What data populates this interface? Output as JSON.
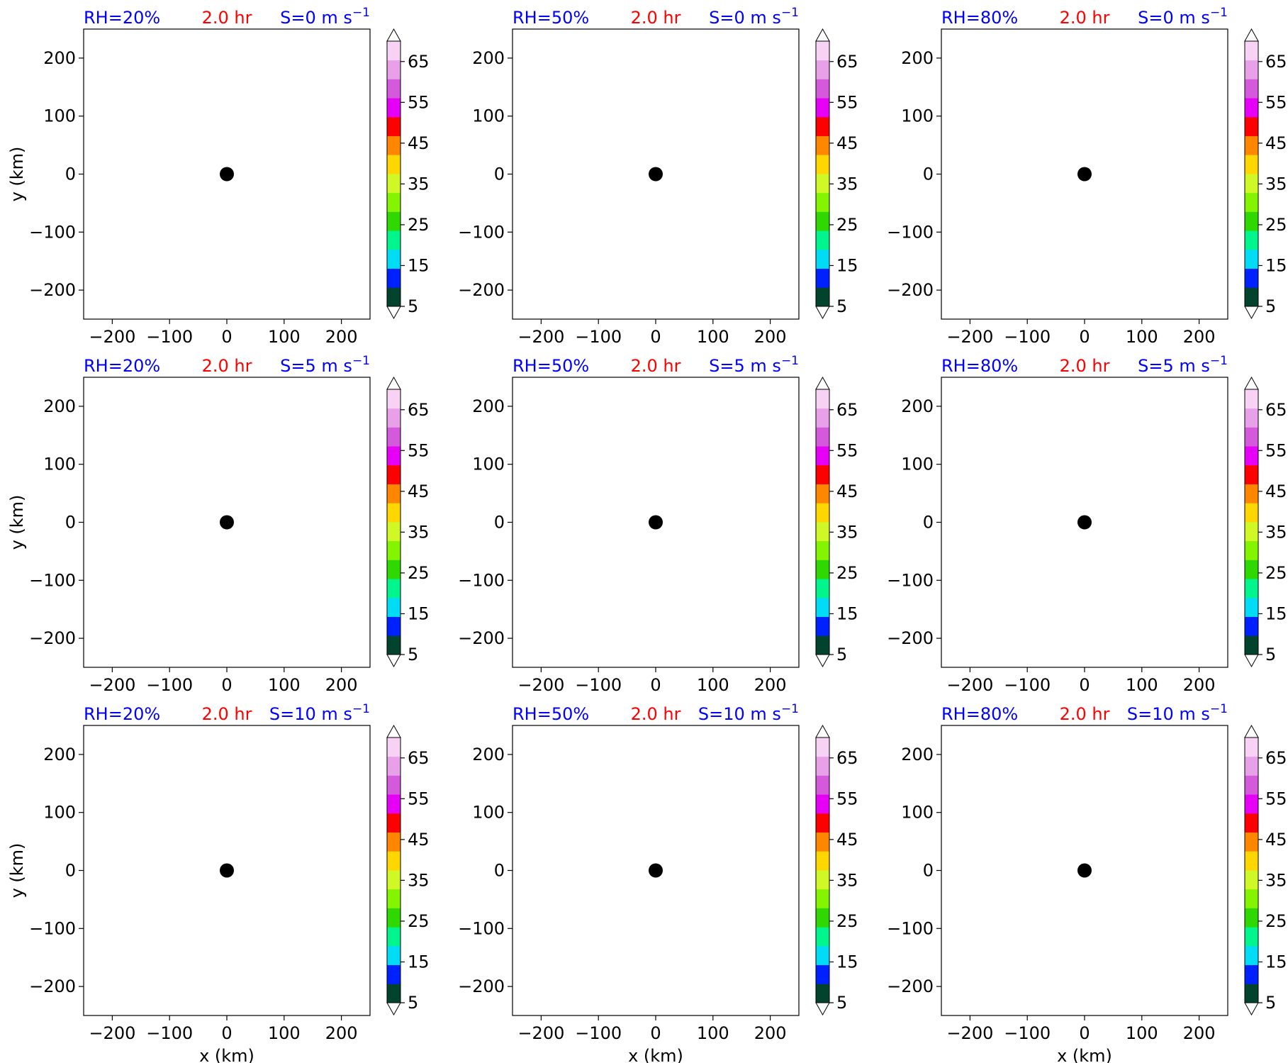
{
  "colorbar": {
    "tick_labels": [
      "5",
      "15",
      "25",
      "35",
      "45",
      "55",
      "65"
    ],
    "levels": [
      5,
      10,
      15,
      20,
      25,
      30,
      35,
      40,
      45,
      50,
      55,
      60,
      65,
      70
    ],
    "colors": [
      "#02432d",
      "#0021ff",
      "#00dcf5",
      "#00f58c",
      "#2fd800",
      "#84f400",
      "#d0f826",
      "#ffd700",
      "#ff8700",
      "#ff0000",
      "#e600f5",
      "#d45adb",
      "#e8a0e8",
      "#f7d2f5"
    ],
    "extend": "both"
  },
  "chart_data": [
    {
      "type": "scatter",
      "title_left": "RH=20%",
      "title_center": "2.0 hr",
      "title_right_prefix": "S=0 m s",
      "title_right_exponent": "−1",
      "xlabel": "",
      "ylabel": "y (km)",
      "xlim": [
        -250,
        250
      ],
      "ylim": [
        -250,
        250
      ],
      "xticks": [
        "−200",
        "−100",
        "0",
        "100",
        "200"
      ],
      "yticks": [
        "200",
        "100",
        "0",
        "−100",
        "−200"
      ],
      "points": [
        {
          "x": 0,
          "y": 0
        }
      ],
      "marker_color": "#000000",
      "grid": false
    },
    {
      "type": "scatter",
      "title_left": "RH=50%",
      "title_center": "2.0 hr",
      "title_right_prefix": "S=0 m s",
      "title_right_exponent": "−1",
      "xlabel": "",
      "ylabel": "",
      "xlim": [
        -250,
        250
      ],
      "ylim": [
        -250,
        250
      ],
      "xticks": [
        "−200",
        "−100",
        "0",
        "100",
        "200"
      ],
      "yticks": [
        "200",
        "100",
        "0",
        "−100",
        "−200"
      ],
      "points": [
        {
          "x": 0,
          "y": 0
        }
      ],
      "marker_color": "#000000",
      "grid": false
    },
    {
      "type": "scatter",
      "title_left": "RH=80%",
      "title_center": "2.0 hr",
      "title_right_prefix": "S=0 m s",
      "title_right_exponent": "−1",
      "xlabel": "",
      "ylabel": "",
      "xlim": [
        -250,
        250
      ],
      "ylim": [
        -250,
        250
      ],
      "xticks": [
        "−200",
        "−100",
        "0",
        "100",
        "200"
      ],
      "yticks": [
        "200",
        "100",
        "0",
        "−100",
        "−200"
      ],
      "points": [
        {
          "x": 0,
          "y": 0
        }
      ],
      "marker_color": "#000000",
      "grid": false
    },
    {
      "type": "scatter",
      "title_left": "RH=20%",
      "title_center": "2.0 hr",
      "title_right_prefix": "S=5 m s",
      "title_right_exponent": "−1",
      "xlabel": "",
      "ylabel": "y (km)",
      "xlim": [
        -250,
        250
      ],
      "ylim": [
        -250,
        250
      ],
      "xticks": [
        "−200",
        "−100",
        "0",
        "100",
        "200"
      ],
      "yticks": [
        "200",
        "100",
        "0",
        "−100",
        "−200"
      ],
      "points": [
        {
          "x": 0,
          "y": 0
        }
      ],
      "marker_color": "#000000",
      "grid": false
    },
    {
      "type": "scatter",
      "title_left": "RH=50%",
      "title_center": "2.0 hr",
      "title_right_prefix": "S=5 m s",
      "title_right_exponent": "−1",
      "xlabel": "",
      "ylabel": "",
      "xlim": [
        -250,
        250
      ],
      "ylim": [
        -250,
        250
      ],
      "xticks": [
        "−200",
        "−100",
        "0",
        "100",
        "200"
      ],
      "yticks": [
        "200",
        "100",
        "0",
        "−100",
        "−200"
      ],
      "points": [
        {
          "x": 0,
          "y": 0
        }
      ],
      "marker_color": "#000000",
      "grid": false
    },
    {
      "type": "scatter",
      "title_left": "RH=80%",
      "title_center": "2.0 hr",
      "title_right_prefix": "S=5 m s",
      "title_right_exponent": "−1",
      "xlabel": "",
      "ylabel": "",
      "xlim": [
        -250,
        250
      ],
      "ylim": [
        -250,
        250
      ],
      "xticks": [
        "−200",
        "−100",
        "0",
        "100",
        "200"
      ],
      "yticks": [
        "200",
        "100",
        "0",
        "−100",
        "−200"
      ],
      "points": [
        {
          "x": 0,
          "y": 0
        }
      ],
      "marker_color": "#000000",
      "grid": false
    },
    {
      "type": "scatter",
      "title_left": "RH=20%",
      "title_center": "2.0 hr",
      "title_right_prefix": "S=10 m s",
      "title_right_exponent": "−1",
      "xlabel": "x (km)",
      "ylabel": "y (km)",
      "xlim": [
        -250,
        250
      ],
      "ylim": [
        -250,
        250
      ],
      "xticks": [
        "−200",
        "−100",
        "0",
        "100",
        "200"
      ],
      "yticks": [
        "200",
        "100",
        "0",
        "−100",
        "−200"
      ],
      "points": [
        {
          "x": 0,
          "y": 0
        }
      ],
      "marker_color": "#000000",
      "grid": false
    },
    {
      "type": "scatter",
      "title_left": "RH=50%",
      "title_center": "2.0 hr",
      "title_right_prefix": "S=10 m s",
      "title_right_exponent": "−1",
      "xlabel": "x (km)",
      "ylabel": "",
      "xlim": [
        -250,
        250
      ],
      "ylim": [
        -250,
        250
      ],
      "xticks": [
        "−200",
        "−100",
        "0",
        "100",
        "200"
      ],
      "yticks": [
        "200",
        "100",
        "0",
        "−100",
        "−200"
      ],
      "points": [
        {
          "x": 0,
          "y": 0
        }
      ],
      "marker_color": "#000000",
      "grid": false
    },
    {
      "type": "scatter",
      "title_left": "RH=80%",
      "title_center": "2.0 hr",
      "title_right_prefix": "S=10 m s",
      "title_right_exponent": "−1",
      "xlabel": "x (km)",
      "ylabel": "",
      "xlim": [
        -250,
        250
      ],
      "ylim": [
        -250,
        250
      ],
      "xticks": [
        "−200",
        "−100",
        "0",
        "100",
        "200"
      ],
      "yticks": [
        "200",
        "100",
        "0",
        "−100",
        "−200"
      ],
      "points": [
        {
          "x": 0,
          "y": 0
        }
      ],
      "marker_color": "#000000",
      "grid": false
    }
  ]
}
